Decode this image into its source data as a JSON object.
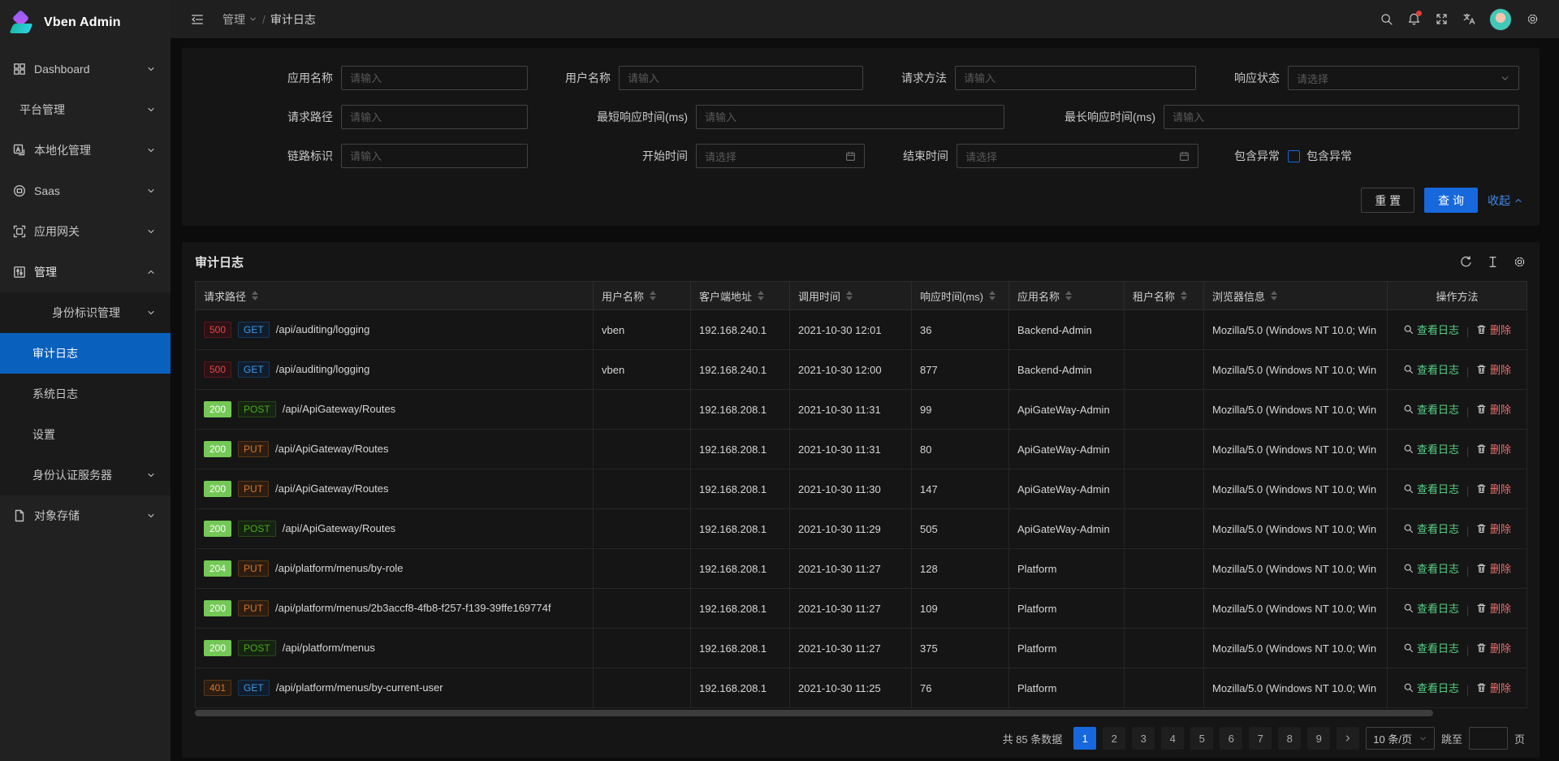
{
  "app": {
    "name": "Vben Admin"
  },
  "colors": {
    "primary_blue": "#0960bd",
    "button_blue": "#1668dc",
    "success_green": "#73c856",
    "error_red": "#e84749",
    "warning_orange": "#d8742a",
    "view_link_green": "#55d187",
    "delete_link_red": "#ed6f6f",
    "notification_dot": "#e23c39"
  },
  "header": {
    "breadcrumb": {
      "section": "管理",
      "current": "审计日志"
    },
    "icons": [
      {
        "name": "search-icon"
      },
      {
        "name": "notification-icon",
        "badge_dot": true
      },
      {
        "name": "fullscreen-icon"
      },
      {
        "name": "translate-icon"
      },
      {
        "name": "avatar"
      },
      {
        "name": "settings-icon"
      }
    ]
  },
  "sidebar": {
    "items": [
      {
        "id": "dashboard",
        "label": "Dashboard",
        "icon": "dashboard-icon",
        "caret": "down"
      },
      {
        "id": "platform",
        "label": "平台管理",
        "icon": null,
        "caret": "down"
      },
      {
        "id": "localization",
        "label": "本地化管理",
        "icon": "localization-icon",
        "caret": "down"
      },
      {
        "id": "saas",
        "label": "Saas",
        "icon": "saas-icon",
        "caret": "down"
      },
      {
        "id": "gateway",
        "label": "应用网关",
        "icon": "gateway-icon",
        "caret": "down"
      },
      {
        "id": "manage",
        "label": "管理",
        "icon": "manage-icon",
        "caret": "up",
        "open": true
      },
      {
        "id": "identity",
        "label": "身份标识管理",
        "sub": true,
        "caret": "down"
      },
      {
        "id": "audit-log",
        "label": "审计日志",
        "sub": true,
        "active": true
      },
      {
        "id": "system-log",
        "label": "系统日志",
        "sub": true
      },
      {
        "id": "settings",
        "label": "设置",
        "sub": true
      },
      {
        "id": "auth-server",
        "label": "身份认证服务器",
        "sub": true,
        "caret": "down"
      },
      {
        "id": "object-storage",
        "label": "对象存储",
        "icon": "storage-icon",
        "caret": "down"
      }
    ]
  },
  "search_form": {
    "rows": [
      [
        {
          "id": "app-name",
          "label": "应用名称",
          "type": "input",
          "placeholder": "请输入"
        },
        {
          "id": "user-name",
          "label": "用户名称",
          "type": "input",
          "placeholder": "请输入"
        },
        {
          "id": "request-method",
          "label": "请求方法",
          "type": "input",
          "placeholder": "请输入"
        },
        {
          "id": "response-status",
          "label": "响应状态",
          "type": "select",
          "placeholder": "请选择"
        }
      ],
      [
        {
          "id": "request-path",
          "label": "请求路径",
          "type": "input",
          "placeholder": "请输入"
        },
        {
          "id": "min-response-time",
          "label": "最短响应时间(ms)",
          "type": "input",
          "placeholder": "请输入"
        },
        {
          "id": "max-response-time",
          "label": "最长响应时间(ms)",
          "type": "input",
          "placeholder": "请输入"
        }
      ],
      [
        {
          "id": "trace-id",
          "label": "链路标识",
          "type": "input",
          "placeholder": "请输入"
        },
        {
          "id": "start-time",
          "label": "开始时间",
          "type": "date",
          "placeholder": "请选择"
        },
        {
          "id": "end-time",
          "label": "结束时间",
          "type": "date",
          "placeholder": "请选择"
        },
        {
          "id": "include-exception",
          "label": "包含异常",
          "type": "checkbox",
          "checkbox_label": "包含异常",
          "checked": false
        }
      ]
    ],
    "reset_label": "重 置",
    "search_label": "查 询",
    "collapse_label": "收起"
  },
  "table": {
    "title": "审计日志",
    "toolbar_icons": [
      "refresh-icon",
      "table-size-icon",
      "column-settings-icon"
    ],
    "columns": [
      {
        "id": "path",
        "label": "请求路径",
        "sortable": true
      },
      {
        "id": "user",
        "label": "用户名称",
        "sortable": true
      },
      {
        "id": "client_ip",
        "label": "客户端地址",
        "sortable": true
      },
      {
        "id": "time",
        "label": "调用时间",
        "sortable": true
      },
      {
        "id": "duration",
        "label": "响应时间(ms)",
        "sortable": true
      },
      {
        "id": "app",
        "label": "应用名称",
        "sortable": true
      },
      {
        "id": "tenant",
        "label": "租户名称",
        "sortable": true
      },
      {
        "id": "browser",
        "label": "浏览器信息",
        "sortable": true
      },
      {
        "id": "actions",
        "label": "操作方法",
        "sortable": false
      }
    ],
    "action_labels": {
      "view": "查看日志",
      "delete": "删除"
    },
    "rows": [
      {
        "status": "500",
        "method": "GET",
        "path": "/api/auditing/logging",
        "user": "vben",
        "client_ip": "192.168.240.1",
        "time": "2021-10-30 12:01",
        "duration": "36",
        "app": "Backend-Admin",
        "tenant": "",
        "browser": "Mozilla/5.0 (Windows NT 10.0; Win"
      },
      {
        "status": "500",
        "method": "GET",
        "path": "/api/auditing/logging",
        "user": "vben",
        "client_ip": "192.168.240.1",
        "time": "2021-10-30 12:00",
        "duration": "877",
        "app": "Backend-Admin",
        "tenant": "",
        "browser": "Mozilla/5.0 (Windows NT 10.0; Win"
      },
      {
        "status": "200",
        "method": "POST",
        "path": "/api/ApiGateway/Routes",
        "user": "",
        "client_ip": "192.168.208.1",
        "time": "2021-10-30 11:31",
        "duration": "99",
        "app": "ApiGateWay-Admin",
        "tenant": "",
        "browser": "Mozilla/5.0 (Windows NT 10.0; Win"
      },
      {
        "status": "200",
        "method": "PUT",
        "path": "/api/ApiGateway/Routes",
        "user": "",
        "client_ip": "192.168.208.1",
        "time": "2021-10-30 11:31",
        "duration": "80",
        "app": "ApiGateWay-Admin",
        "tenant": "",
        "browser": "Mozilla/5.0 (Windows NT 10.0; Win"
      },
      {
        "status": "200",
        "method": "PUT",
        "path": "/api/ApiGateway/Routes",
        "user": "",
        "client_ip": "192.168.208.1",
        "time": "2021-10-30 11:30",
        "duration": "147",
        "app": "ApiGateWay-Admin",
        "tenant": "",
        "browser": "Mozilla/5.0 (Windows NT 10.0; Win"
      },
      {
        "status": "200",
        "method": "POST",
        "path": "/api/ApiGateway/Routes",
        "user": "",
        "client_ip": "192.168.208.1",
        "time": "2021-10-30 11:29",
        "duration": "505",
        "app": "ApiGateWay-Admin",
        "tenant": "",
        "browser": "Mozilla/5.0 (Windows NT 10.0; Win"
      },
      {
        "status": "204",
        "method": "PUT",
        "path": "/api/platform/menus/by-role",
        "user": "",
        "client_ip": "192.168.208.1",
        "time": "2021-10-30 11:27",
        "duration": "128",
        "app": "Platform",
        "tenant": "",
        "browser": "Mozilla/5.0 (Windows NT 10.0; Win"
      },
      {
        "status": "200",
        "method": "PUT",
        "path": "/api/platform/menus/2b3accf8-4fb8-f257-f139-39ffe169774f",
        "user": "",
        "client_ip": "192.168.208.1",
        "time": "2021-10-30 11:27",
        "duration": "109",
        "app": "Platform",
        "tenant": "",
        "browser": "Mozilla/5.0 (Windows NT 10.0; Win"
      },
      {
        "status": "200",
        "method": "POST",
        "path": "/api/platform/menus",
        "user": "",
        "client_ip": "192.168.208.1",
        "time": "2021-10-30 11:27",
        "duration": "375",
        "app": "Platform",
        "tenant": "",
        "browser": "Mozilla/5.0 (Windows NT 10.0; Win"
      },
      {
        "status": "401",
        "method": "GET",
        "path": "/api/platform/menus/by-current-user",
        "user": "",
        "client_ip": "192.168.208.1",
        "time": "2021-10-30 11:25",
        "duration": "76",
        "app": "Platform",
        "tenant": "",
        "browser": "Mozilla/5.0 (Windows NT 10.0; Win"
      }
    ]
  },
  "pagination": {
    "total_label": "共 85 条数据",
    "pages": [
      "1",
      "2",
      "3",
      "4",
      "5",
      "6",
      "7",
      "8",
      "9"
    ],
    "active_page": "1",
    "page_size_label": "10 条/页",
    "jump_label": "跳至",
    "page_unit_label": "页",
    "jump_value": ""
  }
}
